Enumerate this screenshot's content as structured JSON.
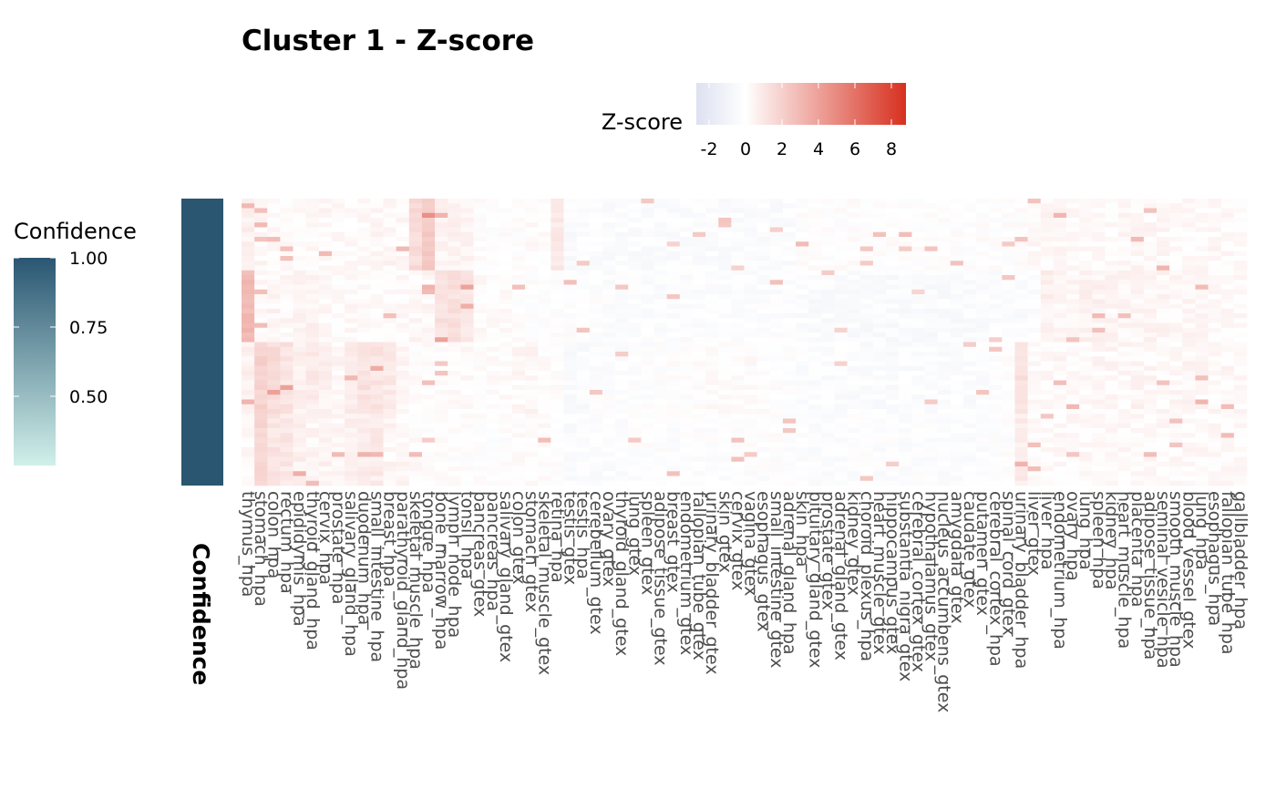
{
  "chart_data": {
    "type": "heatmap",
    "title": "Cluster 1 - Z-score",
    "zscore_legend": {
      "title": "Z-score",
      "ticks": [
        -2,
        0,
        2,
        4,
        6,
        8
      ],
      "range": [
        -2.7,
        8.8
      ],
      "colors": [
        "#dde1f0",
        "#ffffff",
        "#d7301f"
      ]
    },
    "confidence_legend": {
      "title": "Confidence",
      "ticks": [
        "1.00",
        "0.75",
        "0.50"
      ],
      "tick_values": [
        1.0,
        0.75,
        0.5
      ],
      "range": [
        0.25,
        1.0
      ],
      "colors": [
        "#d0f0ea",
        "#2a5672"
      ]
    },
    "annotation": {
      "label": "Confidence",
      "value": 1.0,
      "color": "#2a5672"
    },
    "columns": [
      "thymus_hpa",
      "stomach_hpa",
      "colon_hpa",
      "rectum_hpa",
      "epididymis_hpa",
      "thyroid_gland_hpa",
      "cervix_hpa",
      "prostate_hpa",
      "salivary_gland_hpa",
      "duodenum_hpa",
      "small_intestine_hpa",
      "breast_hpa",
      "parathyroid_gland_hpa",
      "skeletal_muscle_hpa",
      "tongue_hpa",
      "bone_marrow_hpa",
      "lymph_node_hpa",
      "tonsil_hpa",
      "pancreas_gtex",
      "pancreas_hpa",
      "salivary_gland_gtex",
      "colon_gtex",
      "stomach_gtex",
      "skeletal_muscle_gtex",
      "retina_hpa",
      "testis_gtex",
      "testis_hpa",
      "cerebellum_gtex",
      "ovary_gtex",
      "thyroid_gland_gtex",
      "lung_gtex",
      "spleen_gtex",
      "adipose_tissue_gtex",
      "breast_gtex",
      "endometrium_gtex",
      "fallopian_tube_gtex",
      "urinary_bladder_gtex",
      "skin_gtex",
      "cervix_gtex",
      "vagina_gtex",
      "esophagus_gtex",
      "small_intestine_gtex",
      "adrenal_gland_hpa",
      "skin_hpa",
      "pituitary_gland_gtex",
      "prostate_gtex",
      "adrenal_gland_gtex",
      "kidney_gtex",
      "choroid_plexus_hpa",
      "heart_muscle_gtex",
      "hippocampus_gtex",
      "substantia_nigra_gtex",
      "cerebral_cortex_gtex",
      "hypothalamus_gtex",
      "nucleus_accumbens_gtex",
      "amygdala_gtex",
      "caudate_gtex",
      "putamen_gtex",
      "cerebral_cortex_hpa",
      "spinal_cord_gtex",
      "urinary_bladder_hpa",
      "liver_gtex",
      "liver_hpa",
      "endometrium_hpa",
      "ovary_hpa",
      "lung_hpa",
      "spleen_hpa",
      "kidney_hpa",
      "heart_muscle_hpa",
      "placenta_hpa",
      "adipose_tissue_hpa",
      "seminal_vesicle_hpa",
      "smooth_muscle_hpa",
      "blood_vessel_gtex",
      "lung_hpa",
      "esophagus_hpa",
      "fallopian_tube_hpa",
      "gallbladder_hpa"
    ],
    "row_count": 60,
    "block_levels": [
      [
        0.6,
        0.3,
        0.2,
        0.1,
        0.1,
        0.2,
        0.3,
        0.2,
        0.2,
        0.2,
        0.3,
        0.4,
        0.3,
        1.5,
        2.2,
        0.5,
        0.5,
        0.4,
        0.0,
        0.0,
        0.0,
        0.0,
        0.1,
        0.1,
        0.9,
        -0.4,
        -0.3,
        -0.2,
        -0.3,
        -0.3,
        -0.3,
        -0.3,
        -0.3,
        -0.3,
        -0.3,
        -0.3,
        -0.3,
        -0.3,
        -0.3,
        -0.3,
        -0.3,
        -0.3,
        -0.3,
        0.0,
        0.0,
        0.0,
        0.0,
        0.0,
        0.0,
        0.0,
        0.0,
        0.0,
        0.0,
        0.0,
        0.0,
        0.0,
        0.0,
        0.0,
        0.0,
        0.0,
        0.0,
        0.2,
        0.3,
        0.3,
        0.2,
        0.2,
        0.2,
        0.2,
        0.3,
        0.3,
        0.3,
        0.3,
        0.2,
        0.2,
        0.2,
        0.3,
        0.2,
        0.1
      ],
      [
        3.0,
        0.2,
        0.4,
        0.3,
        0.5,
        0.5,
        0.2,
        0.1,
        0.2,
        0.1,
        0.1,
        0.1,
        0.2,
        0.3,
        0.4,
        1.2,
        1.3,
        1.1,
        0.2,
        0.1,
        0.1,
        0.0,
        0.0,
        0.0,
        0.0,
        -0.1,
        -0.1,
        -0.1,
        -0.2,
        -0.2,
        -0.2,
        -0.2,
        -0.2,
        -0.2,
        -0.2,
        -0.2,
        -0.2,
        -0.2,
        -0.2,
        -0.2,
        -0.2,
        -0.2,
        -0.2,
        -0.3,
        -0.4,
        -0.4,
        -0.4,
        -0.4,
        -0.4,
        -0.4,
        -0.4,
        -0.4,
        -0.4,
        -0.4,
        -0.4,
        -0.4,
        -0.4,
        -0.4,
        -0.2,
        -0.2,
        -0.3,
        -0.3,
        0.6,
        0.4,
        0.4,
        0.5,
        0.5,
        0.4,
        0.4,
        0.4,
        0.4,
        0.4,
        0.3,
        0.3,
        0.3,
        0.2,
        0.2,
        0.2
      ],
      [
        0.6,
        1.9,
        1.5,
        1.2,
        0.6,
        0.8,
        0.6,
        0.4,
        0.8,
        1.2,
        1.1,
        0.9,
        0.5,
        0.1,
        0.1,
        0.1,
        0.1,
        0.2,
        0.0,
        0.1,
        0.1,
        0.3,
        0.4,
        0.2,
        0.1,
        -0.4,
        -0.4,
        -0.2,
        -0.1,
        -0.2,
        -0.1,
        -0.1,
        -0.1,
        0.0,
        -0.1,
        0.0,
        0.1,
        0.1,
        0.1,
        0.1,
        0.0,
        0.0,
        -0.1,
        -0.2,
        -0.3,
        -0.3,
        -0.3,
        -0.3,
        -0.3,
        -0.3,
        -0.3,
        -0.3,
        -0.3,
        -0.3,
        -0.3,
        -0.3,
        -0.3,
        -0.3,
        -0.2,
        0.0,
        1.3,
        0.2,
        0.2,
        0.3,
        0.2,
        0.2,
        0.3,
        0.3,
        0.3,
        0.4,
        0.4,
        0.3,
        0.3,
        0.4,
        0.4,
        0.3,
        0.3,
        0.3
      ],
      [
        0.3,
        1.8,
        1.1,
        1.0,
        0.6,
        0.4,
        0.5,
        0.3,
        0.6,
        0.8,
        0.8,
        0.4,
        0.3,
        0.1,
        0.0,
        0.0,
        0.0,
        0.0,
        0.0,
        0.0,
        0.0,
        0.1,
        0.1,
        0.1,
        0.0,
        -0.3,
        -0.2,
        -0.2,
        -0.2,
        -0.2,
        -0.1,
        -0.1,
        -0.1,
        -0.1,
        -0.1,
        -0.1,
        -0.1,
        -0.1,
        -0.1,
        -0.1,
        -0.1,
        -0.1,
        -0.1,
        -0.2,
        -0.2,
        -0.2,
        -0.2,
        -0.2,
        -0.2,
        -0.2,
        -0.2,
        -0.2,
        -0.2,
        -0.2,
        -0.2,
        -0.2,
        -0.2,
        -0.2,
        -0.1,
        -0.1,
        0.8,
        0.2,
        0.2,
        0.2,
        0.2,
        0.2,
        0.2,
        0.2,
        0.2,
        0.2,
        0.2,
        0.2,
        0.2,
        0.2,
        0.2,
        0.2,
        0.2,
        0.2
      ]
    ]
  }
}
